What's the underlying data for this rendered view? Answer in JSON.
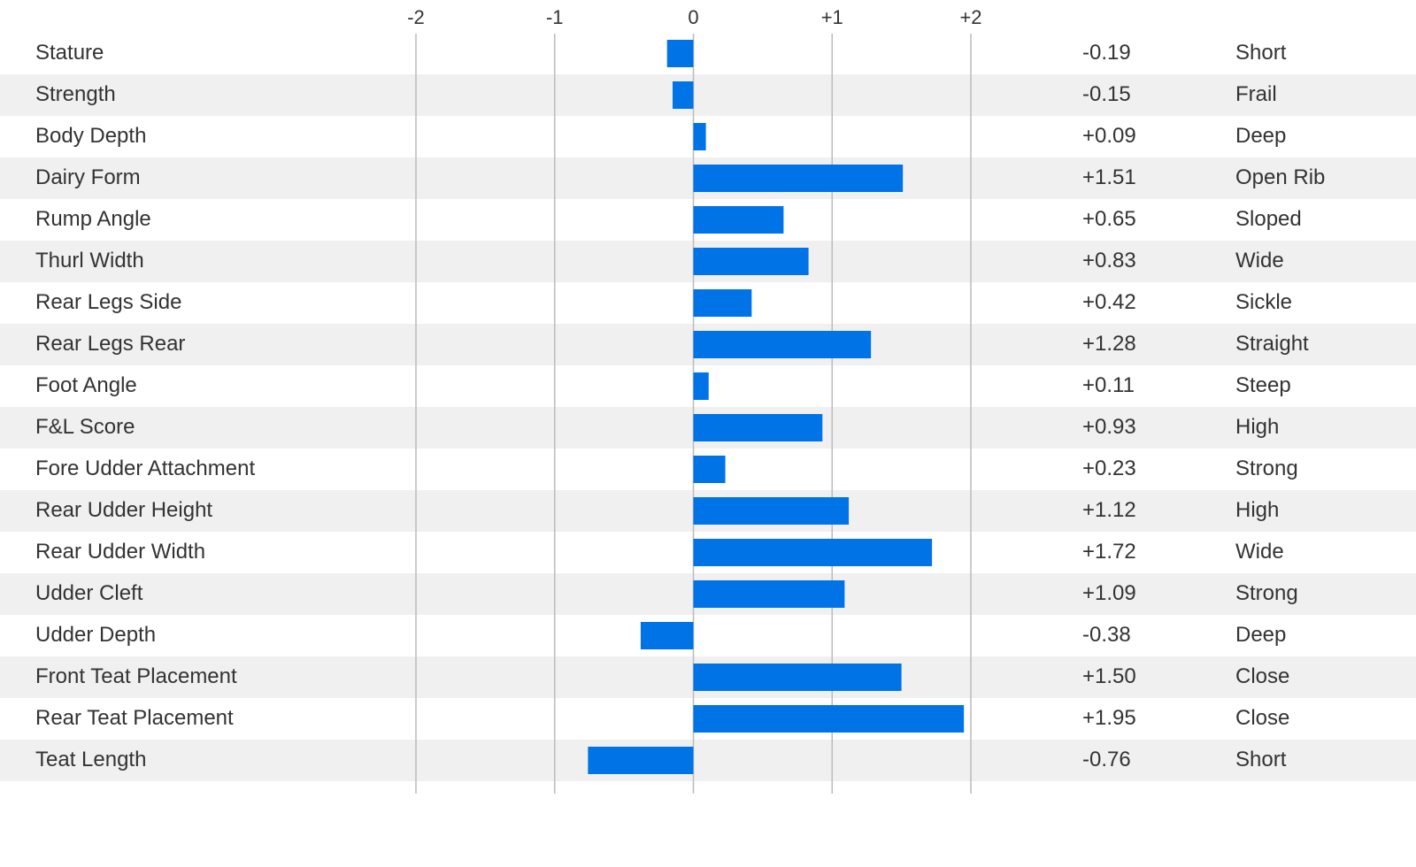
{
  "chart_data": {
    "type": "diverging-bar",
    "categories": [
      "Stature",
      "Strength",
      "Body Depth",
      "Dairy Form",
      "Rump Angle",
      "Thurl Width",
      "Rear Legs Side",
      "Rear Legs Rear",
      "Foot Angle",
      "F&L Score",
      "Fore Udder Attachment",
      "Rear Udder Height",
      "Rear Udder Width",
      "Udder Cleft",
      "Udder Depth",
      "Front Teat Placement",
      "Rear Teat Placement",
      "Teat Length"
    ],
    "values": [
      -0.19,
      -0.15,
      0.09,
      1.51,
      0.65,
      0.83,
      0.42,
      1.28,
      0.11,
      0.93,
      0.23,
      1.12,
      1.72,
      1.09,
      -0.38,
      1.5,
      1.95,
      -0.76
    ],
    "value_labels": [
      "-0.19",
      "-0.15",
      "+0.09",
      "+1.51",
      "+0.65",
      "+0.83",
      "+0.42",
      "+1.28",
      "+0.11",
      "+0.93",
      "+0.23",
      "+1.12",
      "+1.72",
      "+1.09",
      "-0.38",
      "+1.50",
      "+1.95",
      "-0.76"
    ],
    "descriptors": [
      "Short",
      "Frail",
      "Deep",
      "Open Rib",
      "Sloped",
      "Wide",
      "Sickle",
      "Straight",
      "Steep",
      "High",
      "Strong",
      "High",
      "Wide",
      "Strong",
      "Deep",
      "Close",
      "Close",
      "Short"
    ],
    "color": "#0073e6",
    "xlim": [
      -2,
      2
    ],
    "xticks": [
      -2,
      -1,
      0,
      {
        "value": 1,
        "label": "+1"
      },
      {
        "value": 2,
        "label": "+2"
      }
    ],
    "grid": true
  }
}
